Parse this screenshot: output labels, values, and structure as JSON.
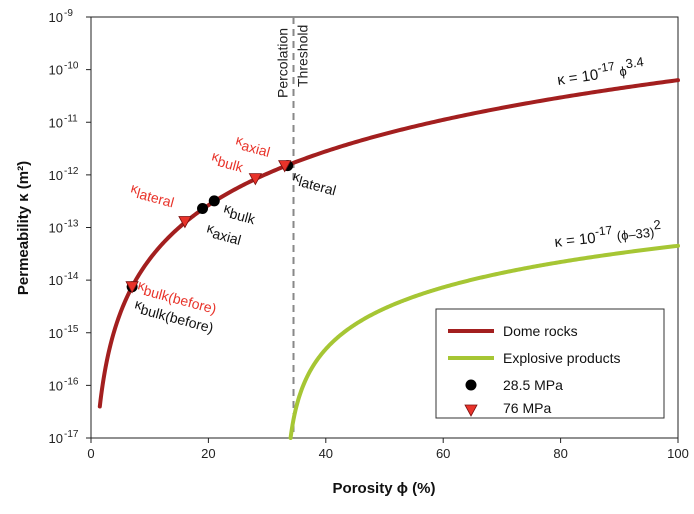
{
  "chart_data": {
    "type": "line",
    "xlabel": "Porosity ϕ (%)",
    "ylabel": "Permeability κ (m²)",
    "xlim": [
      0,
      100
    ],
    "ylim_log10": [
      -17,
      -9
    ],
    "x_ticks": [
      0,
      20,
      40,
      60,
      80,
      100
    ],
    "y_tick_base": "10",
    "y_tick_exponents": [
      "-9",
      "-10",
      "-11",
      "-12",
      "-13",
      "-14",
      "-15",
      "-16",
      "-17"
    ],
    "grid": false,
    "legend_position": "bottom-right",
    "series": [
      {
        "name": "Dome rocks",
        "color": "#a31f1f",
        "equation": {
          "lhs": "κ = 10",
          "exp": "-17",
          "var": "ϕ",
          "pow": "3.4"
        },
        "x_start": 1.5,
        "x_end": 100
      },
      {
        "name": "Explosive products",
        "color": "#a6c634",
        "equation": {
          "lhs": "κ = 10",
          "exp": "-17",
          "var": "(ϕ–33)",
          "pow": "2"
        },
        "x_start": 34,
        "x_end": 100
      }
    ],
    "points_28_5": {
      "name": "28.5 MPa",
      "color": "#000000",
      "points": [
        {
          "x": 7,
          "y": 7.5e-15
        },
        {
          "x": 19,
          "y": 2.3e-13
        },
        {
          "x": 21,
          "y": 3.2e-13
        },
        {
          "x": 33.5,
          "y": 1.5e-12
        }
      ]
    },
    "points_76": {
      "name": "76 MPa",
      "color": "#e8332a",
      "points": [
        {
          "x": 7,
          "y": 7.5e-15
        },
        {
          "x": 16,
          "y": 1.3e-13
        },
        {
          "x": 28,
          "y": 8.5e-13
        },
        {
          "x": 33,
          "y": 1.5e-12
        }
      ]
    },
    "threshold": {
      "x": 34.5,
      "label_line1": "Percolation",
      "label_line2": "Threshold"
    },
    "annotations_black": [
      {
        "sym": "κ",
        "sub": "lateral"
      },
      {
        "sym": "κ",
        "sub": "bulk"
      },
      {
        "sym": "κ",
        "sub": "axial"
      },
      {
        "sym": "κ",
        "sub": "bulk(before)"
      }
    ],
    "annotations_red": [
      {
        "sym": "κ",
        "sub": "axial"
      },
      {
        "sym": "κ",
        "sub": "bulk"
      },
      {
        "sym": "κ",
        "sub": "lateral"
      },
      {
        "sym": "κ",
        "sub": "bulk(before)"
      }
    ]
  }
}
